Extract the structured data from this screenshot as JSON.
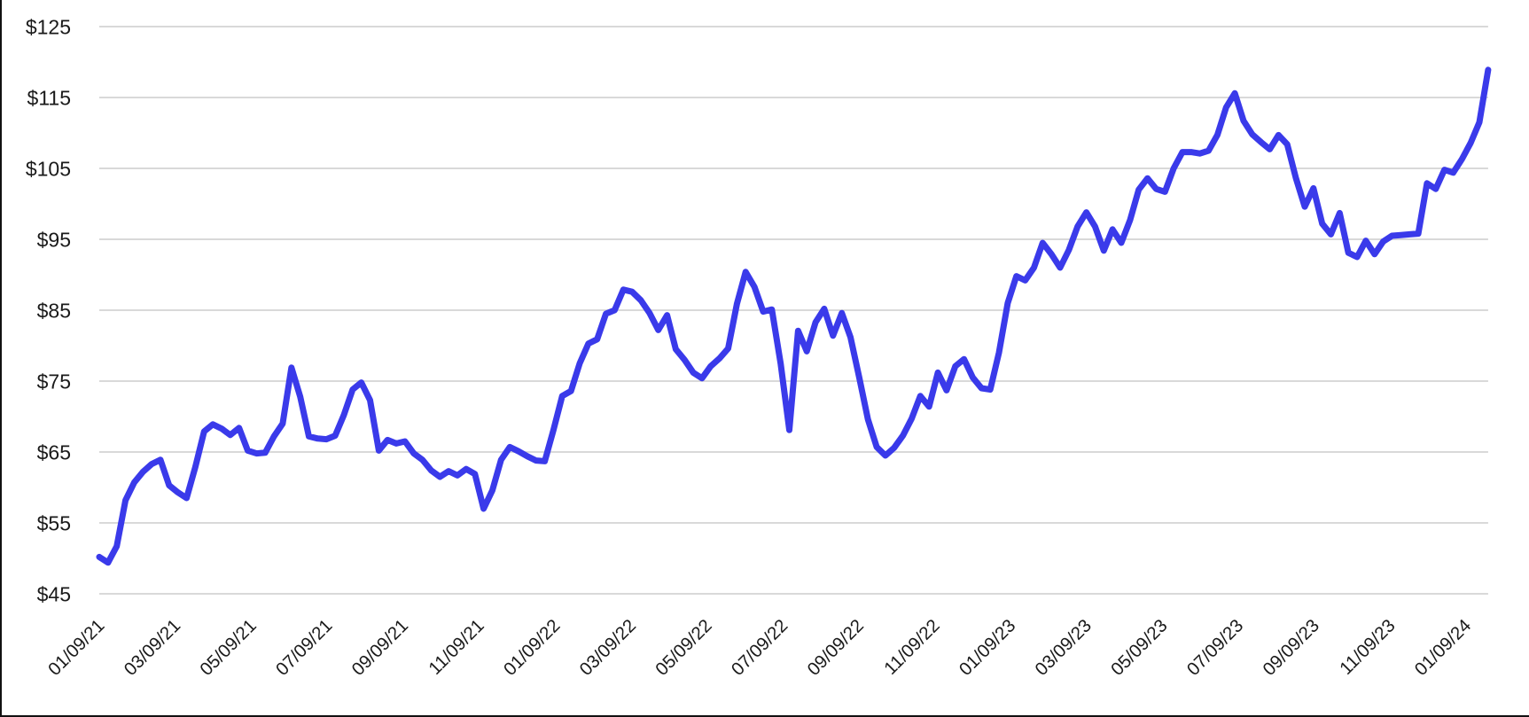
{
  "chart_data": {
    "type": "line",
    "title": "",
    "xlabel": "",
    "ylabel": "",
    "frequency": "weekly",
    "legend": "none",
    "grid": "horizontal-only",
    "y_axis": {
      "min": 45,
      "max": 125,
      "step": 10,
      "tick_prefix": "$"
    },
    "y_tick_labels": [
      "$125",
      "$115",
      "$105",
      "$95",
      "$85",
      "$75",
      "$65",
      "$55",
      "$45"
    ],
    "x_tick_labels": [
      "01/09/21",
      "03/09/21",
      "05/09/21",
      "07/09/21",
      "09/09/21",
      "11/09/21",
      "01/09/22",
      "03/09/22",
      "05/09/22",
      "07/09/22",
      "09/09/22",
      "11/09/22",
      "01/09/23",
      "03/09/23",
      "05/09/23",
      "07/09/23",
      "09/09/23",
      "11/09/23",
      "01/09/24"
    ],
    "series": [
      {
        "name": "price",
        "values": [
          50.2,
          49.4,
          51.7,
          58.2,
          60.7,
          62.2,
          63.3,
          63.9,
          60.3,
          59.3,
          58.5,
          62.9,
          67.9,
          68.9,
          68.3,
          67.4,
          68.4,
          65.2,
          64.8,
          64.9,
          67.2,
          69.0,
          76.9,
          72.8,
          67.2,
          66.9,
          66.8,
          67.3,
          70.2,
          73.8,
          74.8,
          72.3,
          65.2,
          66.7,
          66.2,
          66.5,
          64.8,
          63.9,
          62.4,
          61.5,
          62.3,
          61.7,
          62.6,
          61.9,
          57.0,
          59.6,
          63.9,
          65.7,
          65.1,
          64.4,
          63.8,
          63.7,
          68.1,
          72.9,
          73.6,
          77.5,
          80.3,
          80.9,
          84.5,
          85.0,
          87.9,
          87.6,
          86.4,
          84.6,
          82.2,
          84.3,
          79.5,
          78.0,
          76.2,
          75.4,
          77.1,
          78.2,
          79.6,
          85.9,
          90.4,
          88.3,
          84.8,
          85.1,
          77.5,
          68.1,
          82.1,
          79.2,
          83.3,
          85.2,
          81.4,
          84.6,
          81.2,
          75.5,
          69.6,
          65.7,
          64.5,
          65.6,
          67.3,
          69.7,
          72.9,
          71.4,
          76.2,
          73.7,
          77.1,
          78.1,
          75.5,
          74.0,
          73.8,
          79.0,
          86.0,
          89.8,
          89.2,
          91.0,
          94.5,
          92.9,
          91.0,
          93.5,
          96.8,
          98.8,
          96.8,
          93.4,
          96.4,
          94.5,
          97.7,
          102.0,
          103.6,
          102.1,
          101.7,
          105.0,
          107.3,
          107.3,
          107.1,
          107.5,
          109.7,
          113.6,
          115.6,
          111.7,
          109.8,
          108.7,
          107.7,
          109.7,
          108.4,
          103.6,
          99.6,
          102.2,
          97.2,
          95.7,
          98.7,
          93.1,
          92.5,
          94.8,
          92.9,
          94.7,
          95.5,
          95.6,
          95.7,
          95.8,
          102.9,
          102.1,
          104.8,
          104.4,
          106.3,
          108.6,
          111.5,
          118.9
        ]
      }
    ],
    "colors": {
      "line": "#3a3aea",
      "gridline": "#d9d9d9",
      "tick_text": "#1a1a1a",
      "border": "#111111",
      "background": "#ffffff"
    }
  }
}
